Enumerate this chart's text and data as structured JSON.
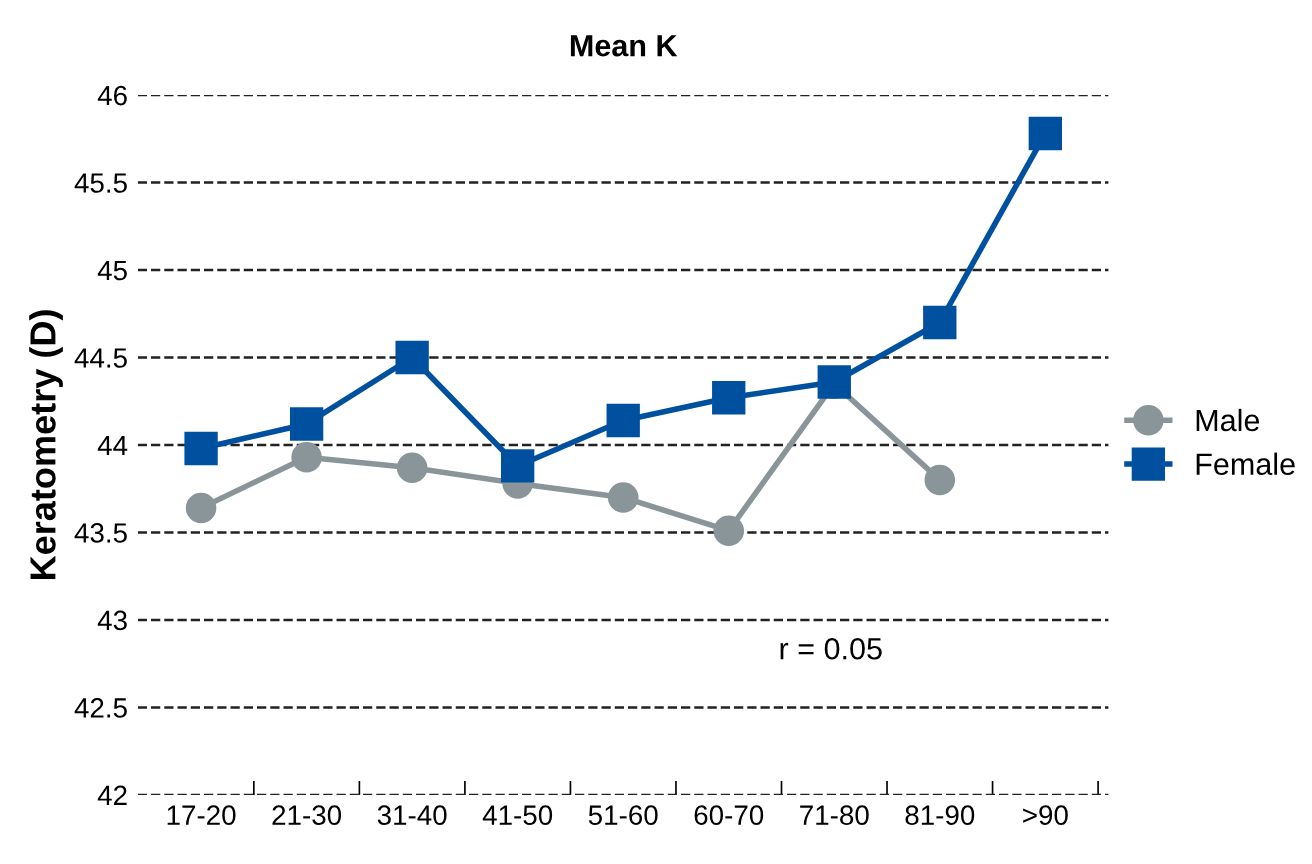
{
  "chart_data": {
    "type": "line",
    "title": "Mean K",
    "ylabel": "Keratometry (D)",
    "categories": [
      "17-20",
      "21-30",
      "31-40",
      "41-50",
      "51-60",
      "60-70",
      "71-80",
      "81-90",
      ">90"
    ],
    "series": [
      {
        "name": "Male",
        "color": "#8a9599",
        "marker": "circle",
        "values": [
          43.64,
          43.93,
          43.87,
          43.78,
          43.7,
          43.51,
          44.35,
          43.8,
          null
        ]
      },
      {
        "name": "Female",
        "color": "#0050a0",
        "marker": "square",
        "values": [
          43.98,
          44.12,
          44.5,
          43.88,
          44.14,
          44.27,
          44.36,
          44.7,
          45.78
        ]
      }
    ],
    "ylim": [
      42,
      46
    ],
    "yticks": [
      42,
      42.5,
      43,
      43.5,
      44,
      44.5,
      45,
      45.5,
      46
    ],
    "grid": "y",
    "legend": "right",
    "line_style": "solid",
    "annotations": [
      "r = 0.05"
    ]
  }
}
